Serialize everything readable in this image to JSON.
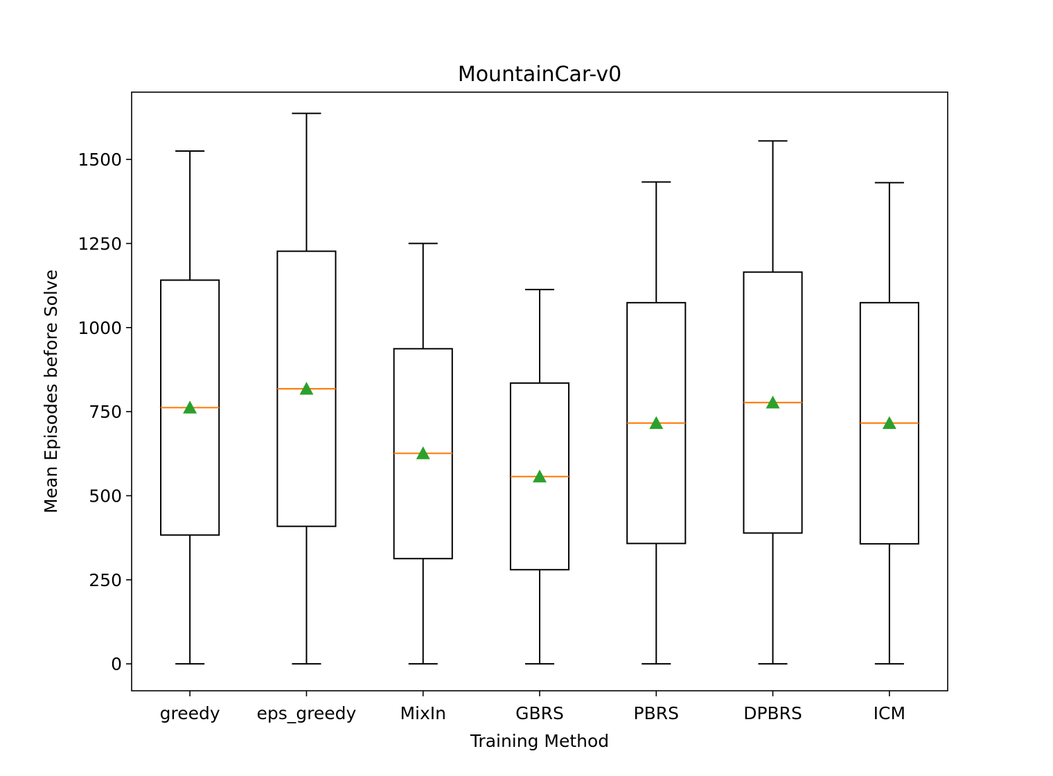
{
  "chart_data": {
    "type": "box",
    "title": "MountainCar-v0",
    "xlabel": "Training Method",
    "ylabel": "Mean Episodes before Solve",
    "ylim": [
      -80,
      1700
    ],
    "yticks": [
      0,
      250,
      500,
      750,
      1000,
      1250,
      1500
    ],
    "ytick_labels": [
      "0",
      "250",
      "500",
      "750",
      "1000",
      "1250",
      "1500"
    ],
    "categories": [
      "greedy",
      "eps_greedy",
      "MixIn",
      "GBRS",
      "PBRS",
      "DPBRS",
      "ICM"
    ],
    "boxes": [
      {
        "whisker_low": 0,
        "q1": 383,
        "median": 762,
        "q3": 1141,
        "whisker_high": 1525,
        "mean": 762
      },
      {
        "whisker_low": 0,
        "q1": 409,
        "median": 818,
        "q3": 1227,
        "whisker_high": 1637,
        "mean": 818
      },
      {
        "whisker_low": 0,
        "q1": 313,
        "median": 626,
        "q3": 937,
        "whisker_high": 1250,
        "mean": 626
      },
      {
        "whisker_low": 0,
        "q1": 280,
        "median": 557,
        "q3": 835,
        "whisker_high": 1113,
        "mean": 557
      },
      {
        "whisker_low": 0,
        "q1": 358,
        "median": 716,
        "q3": 1074,
        "whisker_high": 1433,
        "mean": 716
      },
      {
        "whisker_low": 0,
        "q1": 389,
        "median": 777,
        "q3": 1165,
        "whisker_high": 1555,
        "mean": 777
      },
      {
        "whisker_low": 0,
        "q1": 357,
        "median": 716,
        "q3": 1074,
        "whisker_high": 1431,
        "mean": 716
      }
    ],
    "colors": {
      "box": "#000000",
      "median": "#ff7f0e",
      "mean_marker": "#2ca02c"
    },
    "grid": false,
    "legend": "none"
  }
}
